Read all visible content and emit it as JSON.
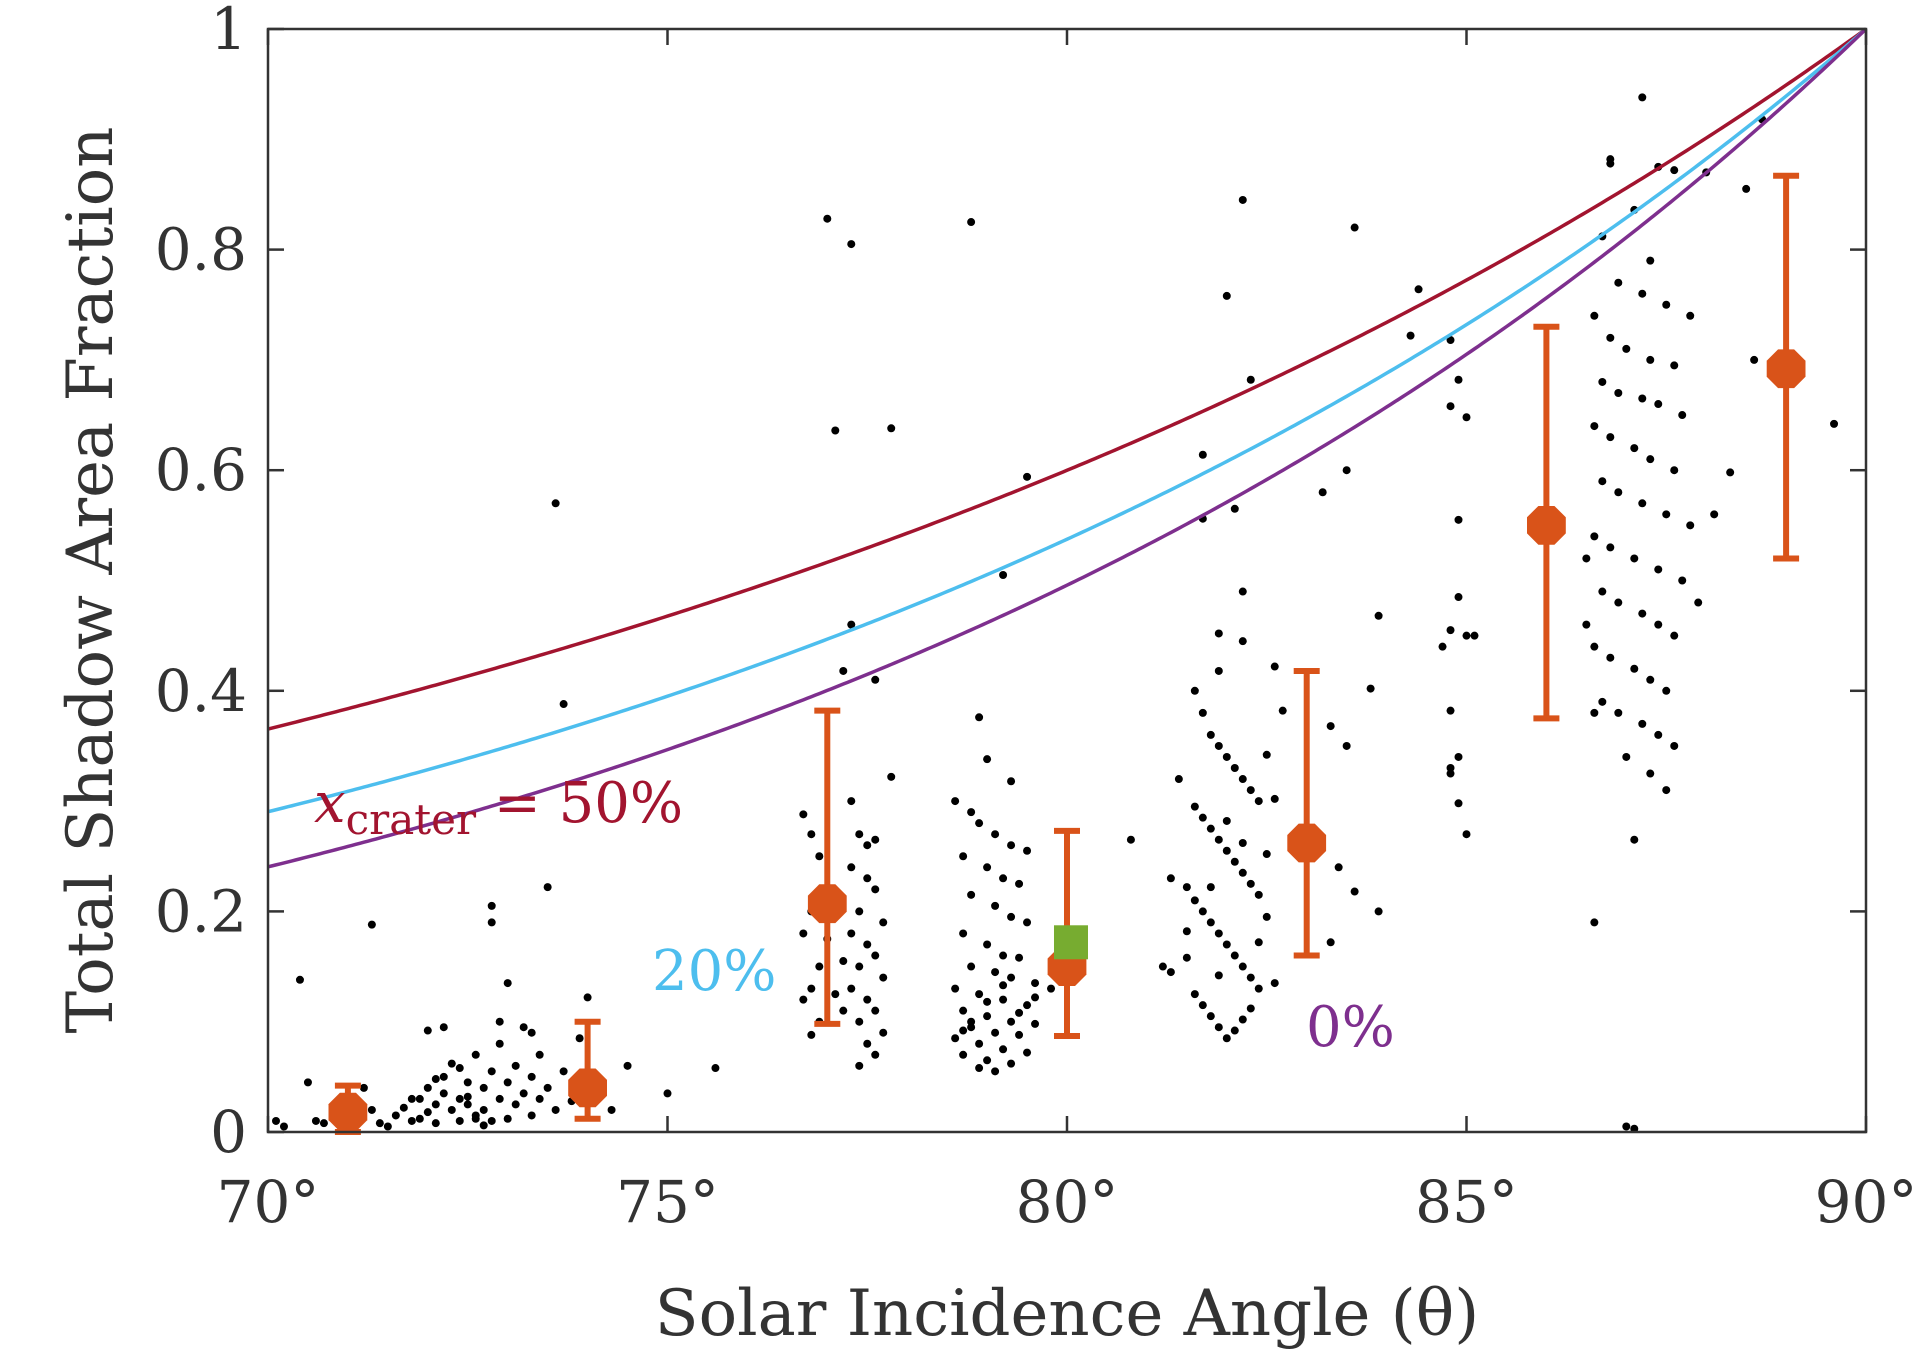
{
  "chart_data": {
    "type": "scatter",
    "title": "",
    "xlabel": "Solar Incidence Angle (θ)",
    "ylabel": "Total Shadow Area Fraction",
    "xlim": [
      70,
      90
    ],
    "ylim": [
      0,
      1
    ],
    "x_ticks": [
      70,
      75,
      80,
      85,
      90
    ],
    "x_tick_labels": [
      "70°",
      "75°",
      "80°",
      "85°",
      "90°"
    ],
    "y_ticks": [
      0,
      0.2,
      0.4,
      0.6,
      0.8,
      1
    ],
    "y_tick_labels": [
      "0",
      "0.2",
      "0.4",
      "0.6",
      "0.8",
      "1"
    ],
    "grid": false,
    "colors": {
      "scatter": "#000000",
      "binned": "#d95319",
      "highlight": "#77ac30",
      "curve_50": "#a2142f",
      "curve_20": "#4dbeee",
      "curve_0": "#7e2f8e",
      "axis": "#333333"
    },
    "curves": [
      {
        "name": "50%",
        "label_prefix": "x",
        "label_subscript": "crater",
        "label_suffix": " = 50%",
        "crater_fraction": 0.5,
        "color": "#a2142f"
      },
      {
        "name": "20%",
        "label": "20%",
        "crater_fraction": 0.2,
        "color": "#4dbeee"
      },
      {
        "name": "0%",
        "label": "0%",
        "crater_fraction": 0.0,
        "color": "#7e2f8e"
      }
    ],
    "binned_points": [
      {
        "x": 71,
        "y": 0.018,
        "low": 0.0,
        "high": 0.042
      },
      {
        "x": 74,
        "y": 0.04,
        "low": 0.012,
        "high": 0.1
      },
      {
        "x": 77,
        "y": 0.207,
        "low": 0.098,
        "high": 0.382
      },
      {
        "x": 80,
        "y": 0.15,
        "low": 0.087,
        "high": 0.273
      },
      {
        "x": 83,
        "y": 0.262,
        "low": 0.16,
        "high": 0.418
      },
      {
        "x": 86,
        "y": 0.55,
        "low": 0.375,
        "high": 0.73
      },
      {
        "x": 89,
        "y": 0.692,
        "low": 0.52,
        "high": 0.867
      }
    ],
    "highlight_point": {
      "x": 80.05,
      "y": 0.172
    },
    "scatter_points": [
      [
        70.4,
        0.138
      ],
      [
        71.3,
        0.188
      ],
      [
        72.8,
        0.205
      ],
      [
        72.8,
        0.19
      ],
      [
        73.6,
        0.57
      ],
      [
        73.7,
        0.388
      ],
      [
        73.5,
        0.222
      ],
      [
        74.0,
        0.122
      ],
      [
        73.0,
        0.135
      ],
      [
        70.1,
        0.01
      ],
      [
        70.2,
        0.005
      ],
      [
        70.5,
        0.045
      ],
      [
        70.6,
        0.01
      ],
      [
        70.7,
        0.008
      ],
      [
        70.9,
        0.012
      ],
      [
        71.0,
        0.03
      ],
      [
        71.2,
        0.04
      ],
      [
        71.3,
        0.02
      ],
      [
        71.4,
        0.008
      ],
      [
        71.5,
        0.005
      ],
      [
        71.6,
        0.015
      ],
      [
        71.7,
        0.022
      ],
      [
        71.8,
        0.01
      ],
      [
        71.8,
        0.03
      ],
      [
        71.9,
        0.012
      ],
      [
        72.0,
        0.018
      ],
      [
        72.0,
        0.04
      ],
      [
        72.0,
        0.092
      ],
      [
        72.1,
        0.025
      ],
      [
        72.1,
        0.008
      ],
      [
        72.2,
        0.035
      ],
      [
        72.2,
        0.05
      ],
      [
        72.3,
        0.02
      ],
      [
        72.3,
        0.062
      ],
      [
        72.4,
        0.03
      ],
      [
        72.4,
        0.01
      ],
      [
        72.5,
        0.045
      ],
      [
        72.5,
        0.025
      ],
      [
        72.6,
        0.015
      ],
      [
        72.6,
        0.07
      ],
      [
        72.7,
        0.04
      ],
      [
        72.7,
        0.02
      ],
      [
        72.8,
        0.055
      ],
      [
        72.8,
        0.01
      ],
      [
        72.9,
        0.03
      ],
      [
        72.9,
        0.08
      ],
      [
        73.0,
        0.045
      ],
      [
        73.0,
        0.012
      ],
      [
        73.1,
        0.025
      ],
      [
        73.1,
        0.06
      ],
      [
        73.2,
        0.035
      ],
      [
        73.2,
        0.095
      ],
      [
        73.3,
        0.05
      ],
      [
        73.3,
        0.015
      ],
      [
        73.4,
        0.07
      ],
      [
        73.4,
        0.03
      ],
      [
        73.5,
        0.04
      ],
      [
        73.6,
        0.02
      ],
      [
        73.7,
        0.055
      ],
      [
        73.8,
        0.028
      ],
      [
        73.9,
        0.085
      ],
      [
        72.2,
        0.095
      ],
      [
        72.9,
        0.1
      ],
      [
        73.3,
        0.09
      ],
      [
        72.5,
        0.032
      ],
      [
        72.6,
        0.012
      ],
      [
        72.1,
        0.048
      ],
      [
        71.9,
        0.03
      ],
      [
        72.4,
        0.058
      ],
      [
        72.7,
        0.006
      ],
      [
        74.5,
        0.06
      ],
      [
        75.0,
        0.035
      ],
      [
        75.6,
        0.058
      ],
      [
        74.3,
        0.02
      ],
      [
        76.7,
        0.288
      ],
      [
        76.8,
        0.27
      ],
      [
        76.9,
        0.25
      ],
      [
        76.8,
        0.2
      ],
      [
        76.7,
        0.18
      ],
      [
        76.9,
        0.15
      ],
      [
        76.8,
        0.13
      ],
      [
        76.7,
        0.12
      ],
      [
        76.9,
        0.1
      ],
      [
        76.8,
        0.088
      ],
      [
        77.0,
        0.828
      ],
      [
        77.3,
        0.805
      ],
      [
        77.1,
        0.636
      ],
      [
        77.8,
        0.638
      ],
      [
        77.3,
        0.46
      ],
      [
        77.2,
        0.418
      ],
      [
        77.6,
        0.41
      ],
      [
        77.8,
        0.322
      ],
      [
        77.3,
        0.3
      ],
      [
        77.4,
        0.27
      ],
      [
        77.5,
        0.26
      ],
      [
        77.6,
        0.265
      ],
      [
        77.3,
        0.24
      ],
      [
        77.5,
        0.23
      ],
      [
        77.6,
        0.22
      ],
      [
        77.4,
        0.2
      ],
      [
        77.7,
        0.19
      ],
      [
        77.3,
        0.18
      ],
      [
        77.5,
        0.17
      ],
      [
        77.6,
        0.16
      ],
      [
        77.4,
        0.15
      ],
      [
        77.7,
        0.14
      ],
      [
        77.3,
        0.13
      ],
      [
        77.5,
        0.12
      ],
      [
        77.6,
        0.11
      ],
      [
        77.4,
        0.1
      ],
      [
        77.7,
        0.09
      ],
      [
        77.5,
        0.08
      ],
      [
        77.6,
        0.07
      ],
      [
        77.4,
        0.06
      ],
      [
        77.2,
        0.11
      ],
      [
        77.2,
        0.155
      ],
      [
        77.1,
        0.125
      ],
      [
        77.0,
        0.175
      ],
      [
        78.8,
        0.825
      ],
      [
        79.5,
        0.594
      ],
      [
        79.2,
        0.505
      ],
      [
        78.9,
        0.376
      ],
      [
        79.0,
        0.338
      ],
      [
        79.3,
        0.318
      ],
      [
        78.6,
        0.3
      ],
      [
        78.8,
        0.29
      ],
      [
        78.9,
        0.28
      ],
      [
        79.1,
        0.27
      ],
      [
        79.3,
        0.26
      ],
      [
        79.5,
        0.255
      ],
      [
        78.7,
        0.25
      ],
      [
        79.0,
        0.24
      ],
      [
        79.2,
        0.23
      ],
      [
        79.4,
        0.225
      ],
      [
        78.8,
        0.215
      ],
      [
        79.1,
        0.205
      ],
      [
        79.3,
        0.195
      ],
      [
        79.5,
        0.19
      ],
      [
        78.7,
        0.18
      ],
      [
        79.0,
        0.17
      ],
      [
        79.2,
        0.16
      ],
      [
        79.4,
        0.158
      ],
      [
        78.8,
        0.15
      ],
      [
        79.1,
        0.145
      ],
      [
        79.3,
        0.14
      ],
      [
        79.6,
        0.135
      ],
      [
        78.6,
        0.13
      ],
      [
        78.9,
        0.125
      ],
      [
        79.2,
        0.12
      ],
      [
        79.5,
        0.115
      ],
      [
        78.7,
        0.11
      ],
      [
        79.0,
        0.105
      ],
      [
        79.3,
        0.1
      ],
      [
        79.6,
        0.098
      ],
      [
        78.8,
        0.095
      ],
      [
        79.1,
        0.09
      ],
      [
        79.4,
        0.088
      ],
      [
        78.6,
        0.085
      ],
      [
        78.9,
        0.08
      ],
      [
        79.2,
        0.075
      ],
      [
        79.5,
        0.072
      ],
      [
        78.7,
        0.07
      ],
      [
        79.0,
        0.065
      ],
      [
        79.3,
        0.062
      ],
      [
        78.9,
        0.058
      ],
      [
        79.1,
        0.055
      ],
      [
        78.8,
        0.1
      ],
      [
        79.0,
        0.118
      ],
      [
        79.2,
        0.133
      ],
      [
        79.4,
        0.108
      ],
      [
        79.6,
        0.122
      ],
      [
        78.7,
        0.092
      ],
      [
        79.8,
        0.13
      ],
      [
        79.9,
        0.15
      ],
      [
        82.2,
        0.845
      ],
      [
        82.0,
        0.758
      ],
      [
        82.3,
        0.682
      ],
      [
        81.7,
        0.614
      ],
      [
        82.1,
        0.565
      ],
      [
        81.7,
        0.556
      ],
      [
        82.2,
        0.49
      ],
      [
        81.9,
        0.452
      ],
      [
        82.2,
        0.445
      ],
      [
        81.9,
        0.418
      ],
      [
        80.8,
        0.265
      ],
      [
        81.3,
        0.23
      ],
      [
        81.4,
        0.32
      ],
      [
        81.2,
        0.15
      ],
      [
        81.3,
        0.145
      ],
      [
        81.6,
        0.4
      ],
      [
        81.7,
        0.38
      ],
      [
        81.8,
        0.36
      ],
      [
        81.9,
        0.35
      ],
      [
        82.0,
        0.34
      ],
      [
        82.1,
        0.33
      ],
      [
        82.2,
        0.32
      ],
      [
        82.3,
        0.31
      ],
      [
        82.4,
        0.3
      ],
      [
        81.6,
        0.295
      ],
      [
        81.7,
        0.285
      ],
      [
        81.8,
        0.275
      ],
      [
        81.9,
        0.265
      ],
      [
        82.0,
        0.255
      ],
      [
        82.1,
        0.245
      ],
      [
        82.2,
        0.235
      ],
      [
        82.3,
        0.225
      ],
      [
        82.4,
        0.215
      ],
      [
        81.6,
        0.21
      ],
      [
        81.7,
        0.2
      ],
      [
        81.8,
        0.19
      ],
      [
        81.9,
        0.18
      ],
      [
        82.0,
        0.17
      ],
      [
        82.1,
        0.16
      ],
      [
        82.2,
        0.15
      ],
      [
        82.3,
        0.14
      ],
      [
        82.4,
        0.13
      ],
      [
        81.6,
        0.125
      ],
      [
        81.7,
        0.115
      ],
      [
        81.8,
        0.105
      ],
      [
        81.9,
        0.095
      ],
      [
        82.0,
        0.085
      ],
      [
        82.1,
        0.092
      ],
      [
        82.2,
        0.102
      ],
      [
        82.3,
        0.112
      ],
      [
        81.5,
        0.182
      ],
      [
        81.5,
        0.222
      ],
      [
        81.5,
        0.158
      ],
      [
        82.5,
        0.252
      ],
      [
        82.5,
        0.342
      ],
      [
        82.6,
        0.422
      ],
      [
        82.6,
        0.302
      ],
      [
        82.7,
        0.382
      ],
      [
        82.5,
        0.195
      ],
      [
        82.6,
        0.135
      ],
      [
        81.8,
        0.222
      ],
      [
        82.0,
        0.282
      ],
      [
        82.2,
        0.262
      ],
      [
        82.4,
        0.172
      ],
      [
        81.9,
        0.142
      ],
      [
        83.6,
        0.82
      ],
      [
        83.5,
        0.6
      ],
      [
        83.2,
        0.58
      ],
      [
        83.3,
        0.368
      ],
      [
        83.5,
        0.35
      ],
      [
        83.4,
        0.24
      ],
      [
        83.6,
        0.218
      ],
      [
        83.3,
        0.172
      ],
      [
        83.9,
        0.468
      ],
      [
        83.8,
        0.402
      ],
      [
        83.9,
        0.2
      ],
      [
        84.4,
        0.764
      ],
      [
        84.3,
        0.722
      ],
      [
        84.8,
        0.718
      ],
      [
        84.9,
        0.682
      ],
      [
        84.8,
        0.658
      ],
      [
        85.0,
        0.648
      ],
      [
        84.9,
        0.555
      ],
      [
        84.9,
        0.485
      ],
      [
        85.0,
        0.45
      ],
      [
        84.8,
        0.455
      ],
      [
        84.7,
        0.44
      ],
      [
        84.8,
        0.382
      ],
      [
        84.9,
        0.34
      ],
      [
        84.8,
        0.33
      ],
      [
        84.9,
        0.298
      ],
      [
        85.0,
        0.27
      ],
      [
        84.8,
        0.325
      ],
      [
        85.1,
        0.45
      ],
      [
        87.2,
        0.938
      ],
      [
        88.7,
        0.918
      ],
      [
        86.8,
        0.882
      ],
      [
        86.8,
        0.878
      ],
      [
        87.4,
        0.875
      ],
      [
        87.6,
        0.872
      ],
      [
        88.0,
        0.87
      ],
      [
        88.5,
        0.855
      ],
      [
        86.7,
        0.812
      ],
      [
        87.3,
        0.79
      ],
      [
        87.1,
        0.836
      ],
      [
        86.9,
        0.77
      ],
      [
        87.2,
        0.76
      ],
      [
        87.5,
        0.75
      ],
      [
        87.8,
        0.74
      ],
      [
        86.6,
        0.74
      ],
      [
        86.8,
        0.72
      ],
      [
        87.0,
        0.71
      ],
      [
        87.3,
        0.7
      ],
      [
        87.6,
        0.695
      ],
      [
        86.7,
        0.68
      ],
      [
        86.9,
        0.67
      ],
      [
        87.2,
        0.665
      ],
      [
        87.4,
        0.66
      ],
      [
        87.7,
        0.65
      ],
      [
        86.6,
        0.64
      ],
      [
        86.8,
        0.63
      ],
      [
        87.1,
        0.62
      ],
      [
        87.3,
        0.61
      ],
      [
        87.6,
        0.6
      ],
      [
        86.7,
        0.59
      ],
      [
        86.9,
        0.58
      ],
      [
        87.2,
        0.57
      ],
      [
        87.5,
        0.56
      ],
      [
        87.8,
        0.55
      ],
      [
        86.6,
        0.54
      ],
      [
        86.8,
        0.53
      ],
      [
        87.1,
        0.52
      ],
      [
        87.4,
        0.51
      ],
      [
        87.7,
        0.5
      ],
      [
        86.7,
        0.49
      ],
      [
        86.9,
        0.48
      ],
      [
        87.2,
        0.47
      ],
      [
        87.4,
        0.46
      ],
      [
        87.6,
        0.45
      ],
      [
        86.6,
        0.44
      ],
      [
        86.8,
        0.43
      ],
      [
        87.1,
        0.42
      ],
      [
        87.3,
        0.41
      ],
      [
        87.5,
        0.4
      ],
      [
        86.7,
        0.39
      ],
      [
        86.9,
        0.38
      ],
      [
        87.2,
        0.37
      ],
      [
        87.4,
        0.36
      ],
      [
        87.6,
        0.35
      ],
      [
        86.6,
        0.38
      ],
      [
        87.0,
        0.34
      ],
      [
        87.3,
        0.325
      ],
      [
        87.5,
        0.31
      ],
      [
        87.1,
        0.265
      ],
      [
        86.6,
        0.19
      ],
      [
        87.0,
        0.005
      ],
      [
        87.1,
        0.003
      ],
      [
        88.3,
        0.598
      ],
      [
        88.6,
        0.7
      ],
      [
        89.6,
        0.642
      ],
      [
        86.5,
        0.52
      ],
      [
        86.5,
        0.46
      ],
      [
        87.9,
        0.48
      ],
      [
        88.1,
        0.56
      ]
    ]
  }
}
